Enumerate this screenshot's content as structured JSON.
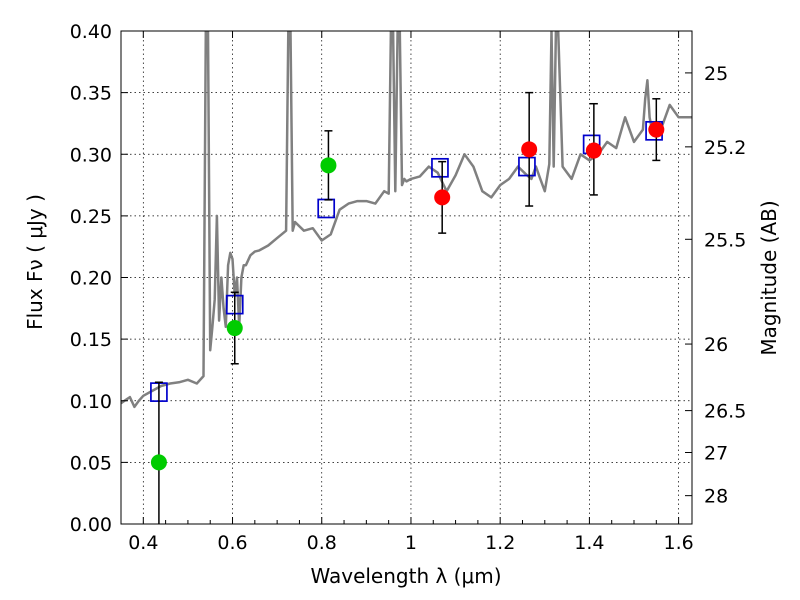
{
  "chart_data": {
    "type": "scatter",
    "xlim": [
      0.35,
      1.63
    ],
    "ylim": [
      0.0,
      0.4
    ],
    "grid": true,
    "x_ticks": [
      0.4,
      0.6,
      0.8,
      1.0,
      1.2,
      1.4,
      1.6
    ],
    "x_tick_labels": [
      "0.4",
      "0.6",
      "0.8",
      "1",
      "1.2",
      "1.4",
      "1.6"
    ],
    "y_ticks": [
      0.0,
      0.05,
      0.1,
      0.15,
      0.2,
      0.25,
      0.3,
      0.35,
      0.4
    ],
    "y_tick_labels": [
      "0.00",
      "0.05",
      "0.10",
      "0.15",
      "0.20",
      "0.25",
      "0.30",
      "0.35",
      "0.40"
    ],
    "right_axis": {
      "ylabel": "Magnitude (AB)",
      "ticks": [
        {
          "flux": 0.366,
          "label": "25"
        },
        {
          "flux": 0.306,
          "label": "25.2"
        },
        {
          "flux": 0.231,
          "label": "25.5"
        },
        {
          "flux": 0.146,
          "label": "26"
        },
        {
          "flux": 0.092,
          "label": "26.5"
        },
        {
          "flux": 0.058,
          "label": "27"
        },
        {
          "flux": 0.023,
          "label": "28"
        }
      ]
    },
    "xlabel": "Wavelength  λ (μm)",
    "ylabel": "Flux  Fν  ( μJy )",
    "series": [
      {
        "type": "line",
        "color": "#808080",
        "x": [
          0.35,
          0.37,
          0.38,
          0.39,
          0.4,
          0.42,
          0.44,
          0.46,
          0.48,
          0.5,
          0.52,
          0.535,
          0.54,
          0.545,
          0.55,
          0.555,
          0.56,
          0.565,
          0.57,
          0.575,
          0.58,
          0.585,
          0.59,
          0.595,
          0.6,
          0.605,
          0.61,
          0.615,
          0.62,
          0.625,
          0.63,
          0.64,
          0.65,
          0.66,
          0.68,
          0.7,
          0.72,
          0.725,
          0.73,
          0.735,
          0.74,
          0.76,
          0.78,
          0.8,
          0.82,
          0.84,
          0.86,
          0.88,
          0.9,
          0.92,
          0.94,
          0.95,
          0.955,
          0.96,
          0.965,
          0.97,
          0.975,
          0.98,
          0.985,
          0.99,
          1.0,
          1.02,
          1.04,
          1.06,
          1.08,
          1.1,
          1.12,
          1.14,
          1.16,
          1.18,
          1.2,
          1.22,
          1.24,
          1.26,
          1.27,
          1.28,
          1.29,
          1.3,
          1.31,
          1.315,
          1.32,
          1.325,
          1.33,
          1.34,
          1.36,
          1.38,
          1.4,
          1.42,
          1.44,
          1.46,
          1.48,
          1.5,
          1.52,
          1.525,
          1.53,
          1.535,
          1.54,
          1.56,
          1.58,
          1.6,
          1.63
        ],
        "values": [
          0.098,
          0.103,
          0.095,
          0.1,
          0.104,
          0.108,
          0.112,
          0.114,
          0.115,
          0.117,
          0.114,
          0.12,
          0.4,
          0.4,
          0.141,
          0.16,
          0.182,
          0.25,
          0.165,
          0.2,
          0.175,
          0.16,
          0.21,
          0.22,
          0.215,
          0.185,
          0.2,
          0.16,
          0.2,
          0.21,
          0.21,
          0.218,
          0.221,
          0.222,
          0.226,
          0.232,
          0.238,
          0.4,
          0.4,
          0.238,
          0.245,
          0.238,
          0.24,
          0.23,
          0.235,
          0.255,
          0.26,
          0.262,
          0.262,
          0.26,
          0.27,
          0.268,
          0.4,
          0.4,
          0.27,
          0.4,
          0.4,
          0.275,
          0.28,
          0.278,
          0.28,
          0.282,
          0.29,
          0.285,
          0.27,
          0.283,
          0.3,
          0.29,
          0.27,
          0.265,
          0.275,
          0.28,
          0.29,
          0.283,
          0.28,
          0.29,
          0.28,
          0.27,
          0.292,
          0.4,
          0.29,
          0.4,
          0.4,
          0.29,
          0.28,
          0.3,
          0.295,
          0.3,
          0.31,
          0.305,
          0.33,
          0.31,
          0.32,
          0.345,
          0.36,
          0.33,
          0.32,
          0.32,
          0.34,
          0.33,
          0.33
        ]
      },
      {
        "type": "model_points",
        "marker": "open-square",
        "color": "#0000cc",
        "x": [
          0.435,
          0.605,
          0.81,
          1.065,
          1.26,
          1.405,
          1.545
        ],
        "values": [
          0.107,
          0.178,
          0.256,
          0.289,
          0.29,
          0.308,
          0.319
        ]
      },
      {
        "type": "measurements",
        "marker": "filled-circle",
        "color": "#00cc00",
        "x": [
          0.435,
          0.605,
          0.815
        ],
        "values": [
          0.05,
          0.159,
          0.291
        ],
        "err_low": [
          0.05,
          0.029,
          0.028
        ],
        "err_high": [
          0.065,
          0.029,
          0.028
        ]
      },
      {
        "type": "measurements",
        "marker": "filled-circle",
        "color": "#ff0000",
        "x": [
          1.07,
          1.265,
          1.41,
          1.55
        ],
        "values": [
          0.265,
          0.304,
          0.303,
          0.32
        ],
        "err_low": [
          0.029,
          0.046,
          0.036,
          0.025
        ],
        "err_high": [
          0.029,
          0.046,
          0.038,
          0.025
        ]
      }
    ]
  }
}
